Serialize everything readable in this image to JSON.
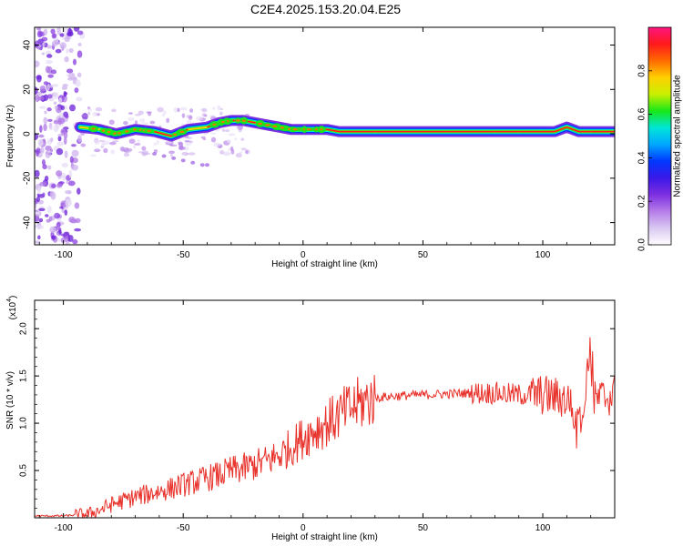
{
  "title": "C2E4.2025.153.20.04.E25",
  "chart_data": [
    {
      "type": "heatmap",
      "xlabel": "Height of straight line (km)",
      "ylabel": "Frequency (Hz)",
      "xlim": [
        -112,
        130
      ],
      "ylim": [
        -50,
        48
      ],
      "xticks": [
        -100,
        -50,
        0,
        50,
        100
      ],
      "yticks": [
        -40,
        -20,
        0,
        20,
        40
      ],
      "colorbar": {
        "label": "Normalized spectral amplitude",
        "range": [
          0,
          1
        ],
        "ticks": [
          "0.0",
          "0.2",
          "0.4",
          "0.6",
          "0.8"
        ],
        "colors": [
          "#ffffff",
          "#d9c8f2",
          "#b57ce8",
          "#7d2ee0",
          "#3a18e8",
          "#0038ff",
          "#00a8ff",
          "#00e5d8",
          "#18e818",
          "#c8f000",
          "#ffd000",
          "#ff6a00",
          "#ff1a1a",
          "#ff1480"
        ]
      },
      "ridge_line": {
        "x": [
          -93,
          -85,
          -78,
          -70,
          -62,
          -55,
          -48,
          -40,
          -35,
          -30,
          -25,
          -20,
          -15,
          -10,
          -5,
          0,
          5,
          10,
          15,
          20,
          30,
          40,
          50,
          60,
          70,
          80,
          90,
          100,
          105,
          110,
          115,
          120,
          125,
          130
        ],
        "y": [
          3,
          2,
          0,
          2,
          1,
          -1,
          2,
          3,
          5,
          6,
          6,
          5,
          4,
          3,
          2,
          2,
          2,
          2,
          1,
          1,
          1,
          1,
          1,
          1,
          1,
          1,
          1,
          1,
          1,
          3,
          1,
          1,
          1,
          1
        ]
      },
      "side_branch": {
        "x": [
          -62,
          -58,
          -54,
          -50,
          -46,
          -42,
          -40
        ],
        "y": [
          -9,
          -10,
          -11,
          -12,
          -13,
          -14,
          -14
        ]
      },
      "noise_region_x": [
        -112,
        -90
      ]
    },
    {
      "type": "line",
      "xlabel": "Height of straight line (km)",
      "ylabel": "SNR (10 * v/v)",
      "y_multiplier": "(x10^4)",
      "xlim": [
        -112,
        130
      ],
      "ylim": [
        0,
        2.3
      ],
      "xticks": [
        -100,
        -50,
        0,
        50,
        100
      ],
      "yticks": [
        0.5,
        1.0,
        1.5,
        2.0
      ],
      "yticklabels": [
        "0.5",
        "1.0",
        "1.5",
        "2.0"
      ],
      "color": "#e8312a",
      "series": [
        {
          "x": [
            -112,
            -100,
            -90,
            -85,
            -80,
            -75,
            -70,
            -65,
            -60,
            -55,
            -50,
            -45,
            -40,
            -35,
            -30,
            -25,
            -20,
            -15,
            -10,
            -5,
            0,
            5,
            10,
            15,
            20,
            25,
            30,
            40,
            50,
            60,
            70,
            80,
            90,
            100,
            105,
            110,
            115,
            120,
            125,
            130
          ],
          "y": [
            0.02,
            0.02,
            0.04,
            0.08,
            0.14,
            0.18,
            0.22,
            0.25,
            0.28,
            0.31,
            0.35,
            0.38,
            0.42,
            0.45,
            0.5,
            0.52,
            0.56,
            0.6,
            0.66,
            0.75,
            0.85,
            0.93,
            1.0,
            1.08,
            1.16,
            1.22,
            1.27,
            1.29,
            1.3,
            1.31,
            1.32,
            1.32,
            1.3,
            1.3,
            1.28,
            1.25,
            1.2,
            1.22,
            1.27,
            1.3
          ]
        }
      ]
    }
  ]
}
